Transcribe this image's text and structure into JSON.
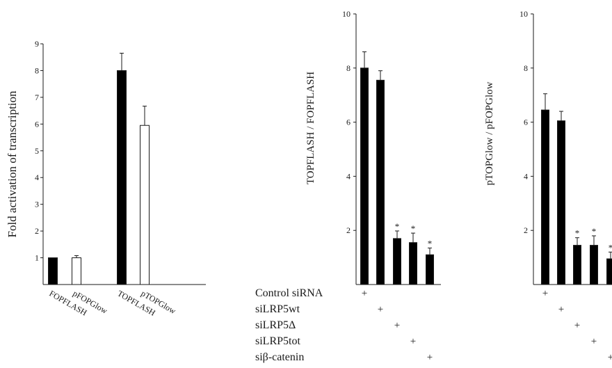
{
  "chart_data": [
    {
      "type": "bar",
      "ylabel": "Fold activation of transcription",
      "ylim": [
        0,
        9
      ],
      "yticks": [
        1,
        2,
        3,
        4,
        5,
        6,
        7,
        8,
        9
      ],
      "categories": [
        "FOPFLASH",
        "pFOPGlow",
        "TOPFLASH",
        "pTOPGlow"
      ],
      "values": [
        1.0,
        1.0,
        8.0,
        5.95
      ],
      "errors": [
        0.0,
        0.08,
        0.65,
        0.72
      ],
      "fills": [
        "#000000",
        "#ffffff",
        "#000000",
        "#ffffff"
      ],
      "grid": false
    },
    {
      "type": "bar",
      "ylabel": "TOPFLASH / FOPFLASH",
      "ylim": [
        0,
        10
      ],
      "yticks": [
        2,
        4,
        6,
        8,
        10
      ],
      "categories": [
        "Control siRNA",
        "siLRP5wt",
        "siLRP5Δ",
        "siLRP5tot",
        "siβ-catenin"
      ],
      "values": [
        8.0,
        7.55,
        1.7,
        1.55,
        1.1
      ],
      "errors": [
        0.6,
        0.35,
        0.28,
        0.35,
        0.25
      ],
      "significant": [
        false,
        false,
        true,
        true,
        true
      ],
      "fills": [
        "#000000",
        "#000000",
        "#000000",
        "#000000",
        "#000000"
      ],
      "grid": false
    },
    {
      "type": "bar",
      "ylabel": "pTOPGlow / pFOPGlow",
      "ylim": [
        0,
        10
      ],
      "yticks": [
        2,
        4,
        6,
        8,
        10
      ],
      "categories": [
        "Control siRNA",
        "siLRP5wt",
        "siLRP5Δ",
        "siLRP5tot",
        "siβ-catenin"
      ],
      "values": [
        6.45,
        6.05,
        1.45,
        1.45,
        0.95
      ],
      "errors": [
        0.6,
        0.35,
        0.28,
        0.35,
        0.25
      ],
      "significant": [
        false,
        false,
        true,
        true,
        true
      ],
      "fills": [
        "#000000",
        "#000000",
        "#000000",
        "#000000",
        "#000000"
      ],
      "grid": false
    }
  ],
  "treatment_rows": [
    "Control siRNA",
    "siLRP5wt",
    "siLRP5Δ",
    "siLRP5tot",
    "siβ-catenin"
  ],
  "plus_sign": "+",
  "significance_mark": "*"
}
